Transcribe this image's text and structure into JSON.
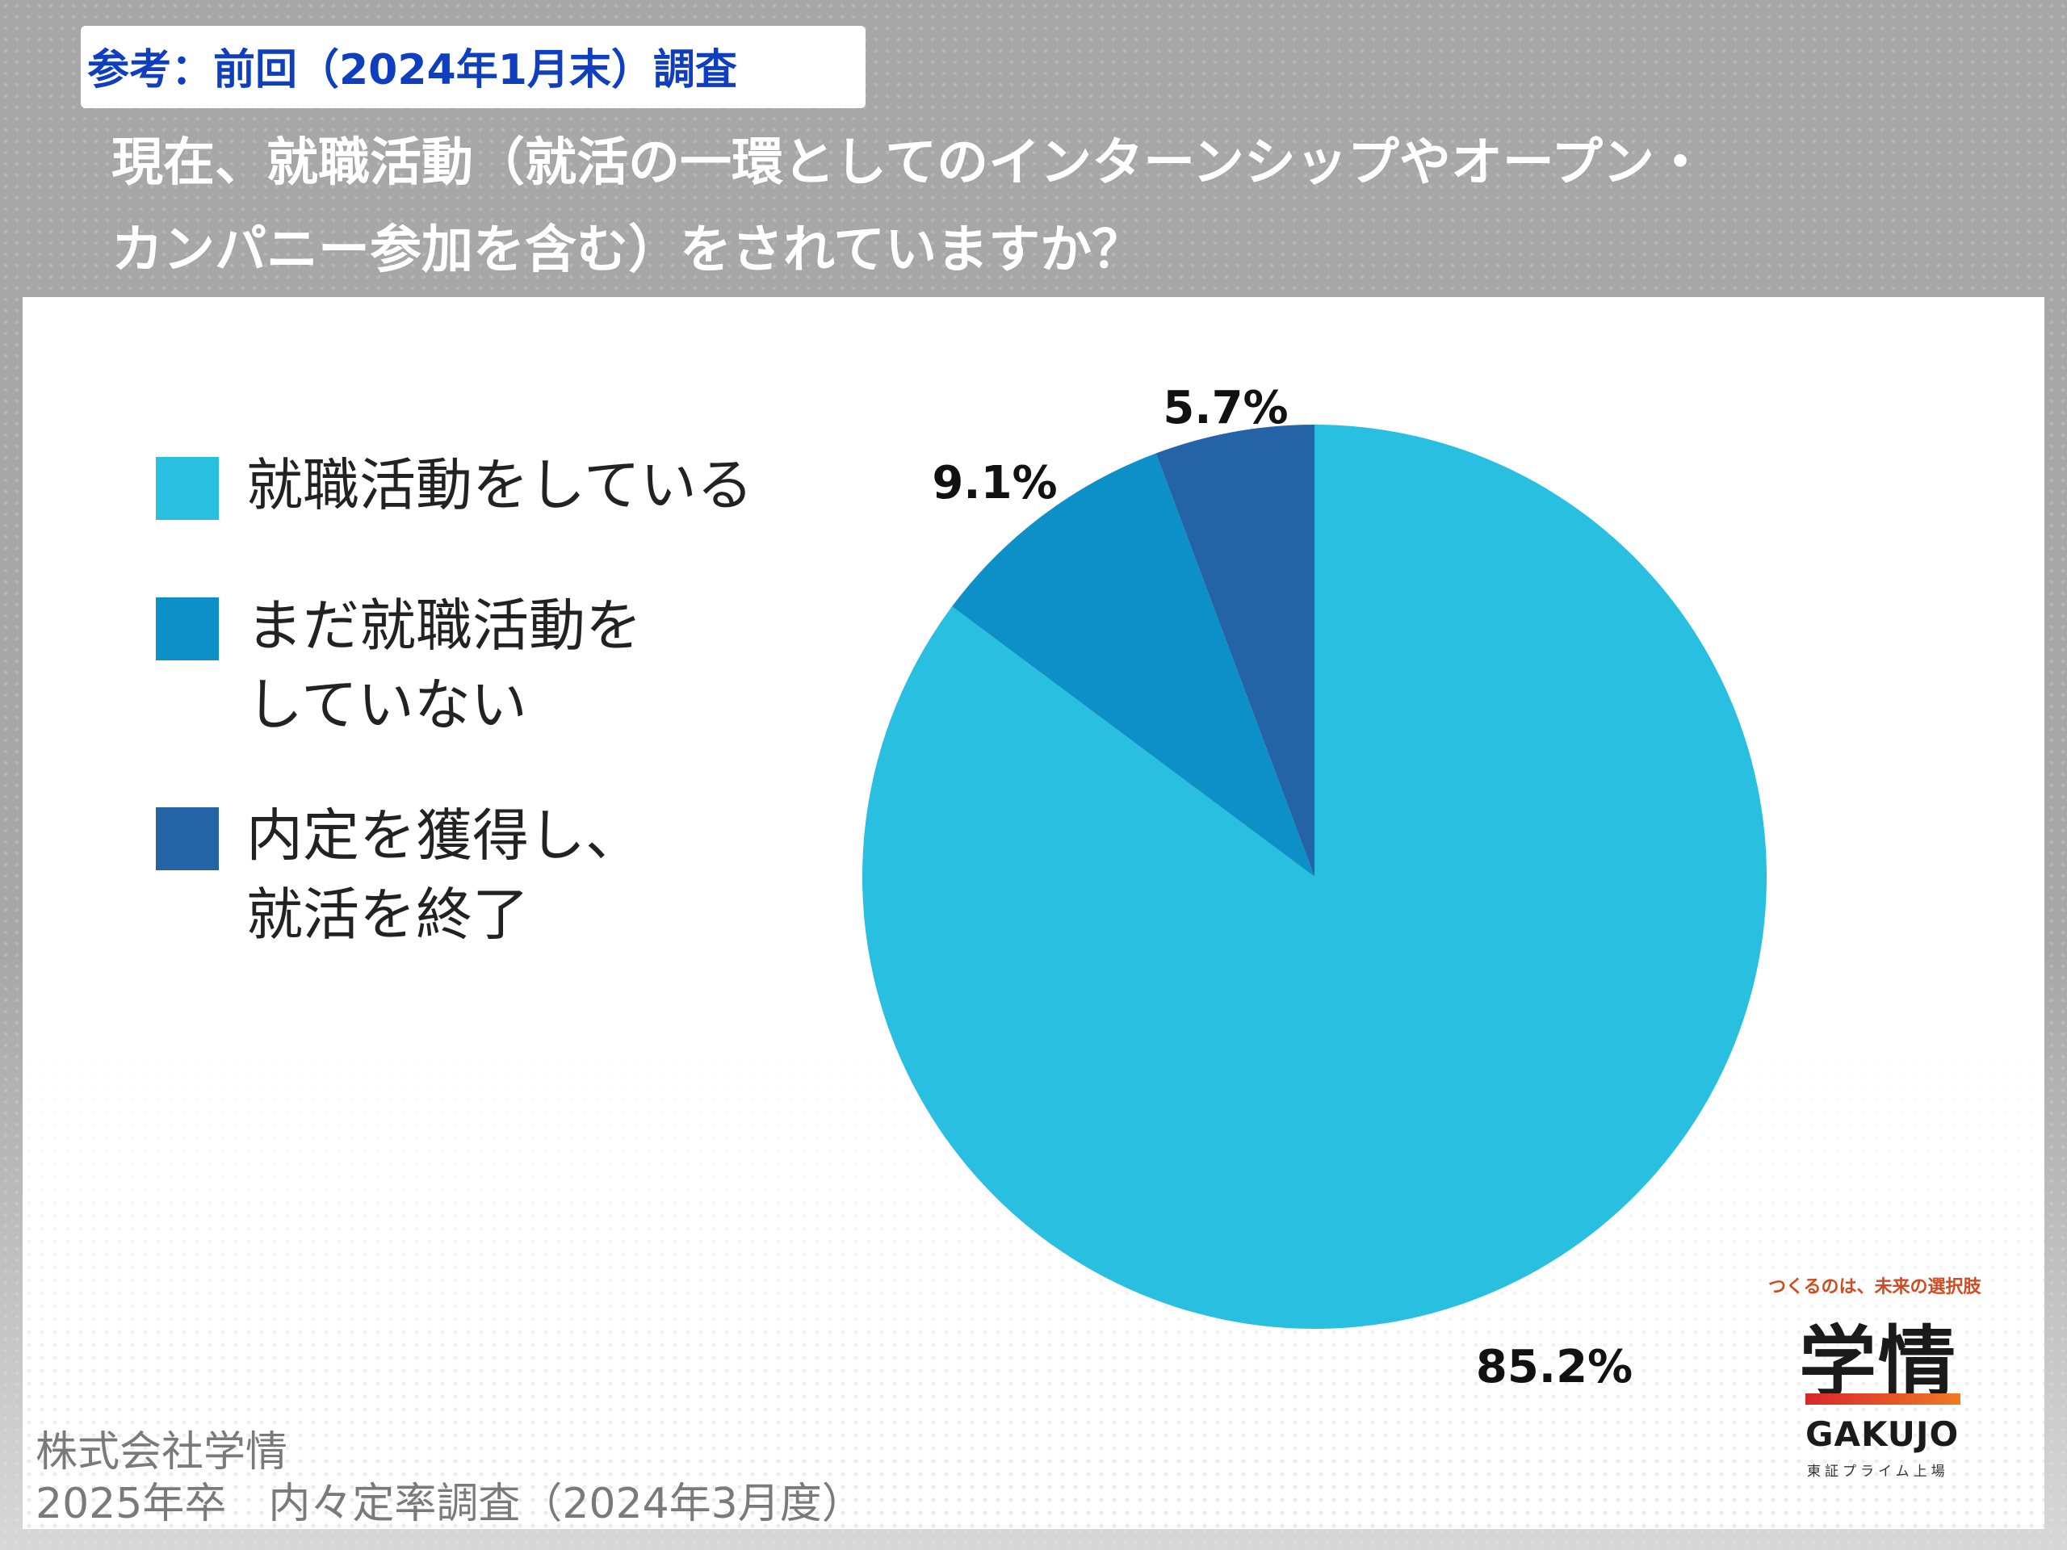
{
  "reference_label": "参考：前回（2024年1月末）調査",
  "question": {
    "line1": "現在、就職活動（就活の一環としてのインターンシップやオープン・",
    "line2": "カンパニー参加を含む）をされていますか？"
  },
  "chart_data": {
    "type": "pie",
    "categories": [
      "就職活動をしている",
      "まだ就職活動をしていない",
      "内定を獲得し、就活を終了"
    ],
    "values": [
      85.2,
      9.1,
      5.7
    ],
    "labels": [
      "85.2%",
      "9.1%",
      "5.7%"
    ],
    "colors": [
      "#29bfe0",
      "#0d90c8",
      "#2464a6"
    ],
    "start": "12 o'clock",
    "direction": "clockwise",
    "legend_placement": "left"
  },
  "legend": [
    {
      "label": "就職活動をしている",
      "color": "#29bfe0"
    },
    {
      "label": "まだ就職活動を\nしていない",
      "color": "#0d90c8"
    },
    {
      "label": "内定を獲得し、\n就活を終了",
      "color": "#2464a6"
    }
  ],
  "logo": {
    "tagline": "つくるのは、未来の選択肢",
    "mark": "学情",
    "name_en": "GAKUJO",
    "sub": "東証プライム上場",
    "gradient": [
      "#d8262c",
      "#ef7b22"
    ]
  },
  "footer": {
    "company": "株式会社学情",
    "survey": "2025年卒　内々定率調査（2024年3月度）"
  }
}
